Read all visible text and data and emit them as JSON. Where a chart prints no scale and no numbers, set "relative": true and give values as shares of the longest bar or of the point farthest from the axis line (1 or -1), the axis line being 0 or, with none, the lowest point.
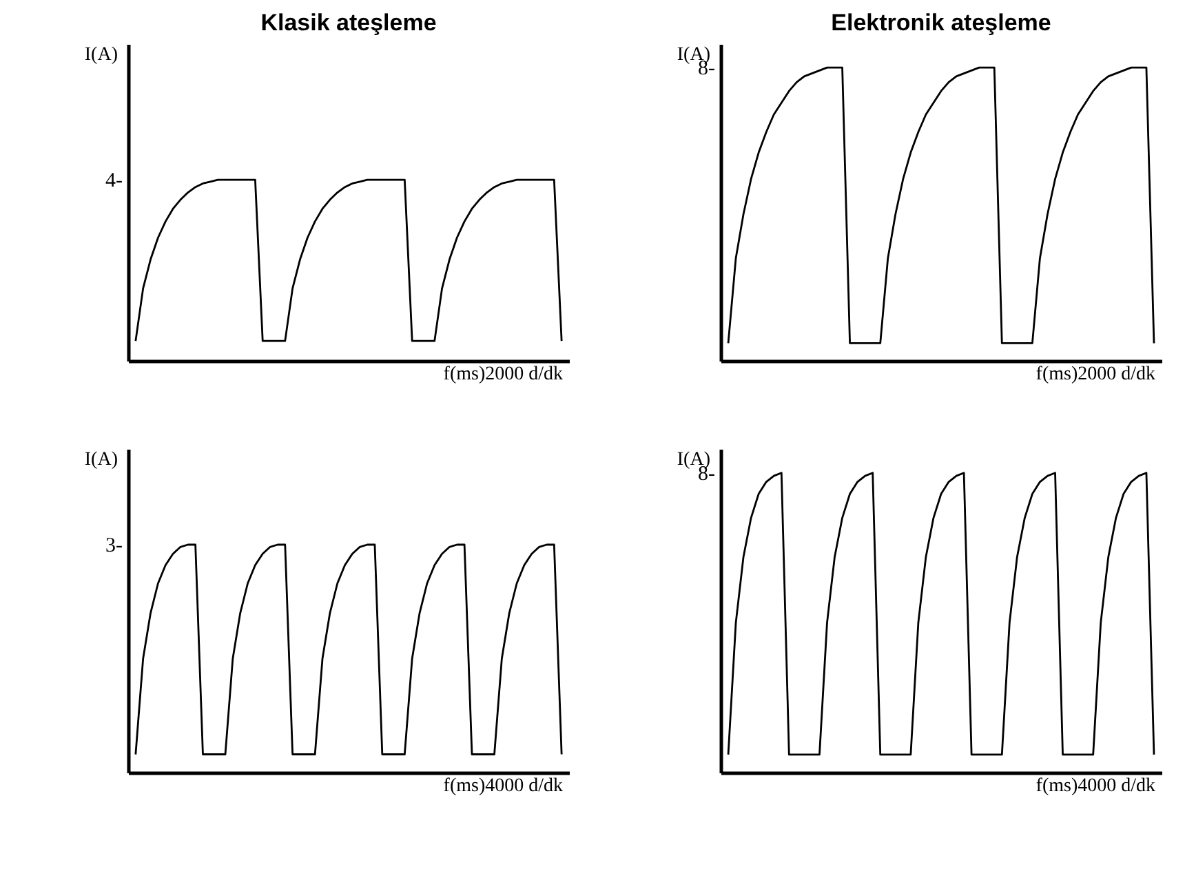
{
  "chart_data": [
    {
      "type": "line",
      "title": "Klasik ateşleme",
      "xlabel": "f(ms)2000 d/dk",
      "ylabel": "I(A)",
      "relative": true,
      "annotations": [
        "4-"
      ],
      "categories": [
        null,
        null,
        null,
        null,
        null,
        null,
        null,
        null,
        null,
        null,
        null,
        null,
        null,
        null,
        null,
        null,
        null,
        null,
        null,
        null,
        null,
        null,
        null,
        null,
        null,
        null,
        null,
        null,
        null,
        null,
        null,
        null,
        null,
        null,
        null,
        null,
        null,
        null,
        null,
        null,
        null,
        null,
        null,
        null,
        null,
        null,
        null,
        null,
        null,
        null,
        null,
        null,
        null,
        null,
        null,
        null,
        null,
        null
      ],
      "series": [
        {
          "color": "#000000",
          "values": [
            0.11,
            0.4,
            0.56,
            0.68,
            0.77,
            0.84,
            0.89,
            0.93,
            0.96,
            0.98,
            0.99,
            1,
            1,
            1,
            1,
            1,
            1,
            0.11,
            0.11,
            0.11,
            0.11,
            0.4,
            0.56,
            0.68,
            0.77,
            0.84,
            0.89,
            0.93,
            0.96,
            0.98,
            0.99,
            1,
            1,
            1,
            1,
            1,
            1,
            0.11,
            0.11,
            0.11,
            0.11,
            0.4,
            0.56,
            0.68,
            0.77,
            0.84,
            0.89,
            0.93,
            0.96,
            0.98,
            0.99,
            1,
            1,
            1,
            1,
            1,
            1,
            0.11
          ]
        }
      ]
    },
    {
      "type": "line",
      "title": "Elektronik ateşleme",
      "xlabel": "f(ms)2000 d/dk",
      "ylabel": "I(A)",
      "relative": true,
      "annotations": [
        "8-"
      ],
      "categories": [
        null,
        null,
        null,
        null,
        null,
        null,
        null,
        null,
        null,
        null,
        null,
        null,
        null,
        null,
        null,
        null,
        null,
        null,
        null,
        null,
        null,
        null,
        null,
        null,
        null,
        null,
        null,
        null,
        null,
        null,
        null,
        null,
        null,
        null,
        null,
        null,
        null,
        null,
        null,
        null,
        null,
        null,
        null,
        null,
        null,
        null,
        null,
        null,
        null,
        null,
        null,
        null,
        null,
        null,
        null,
        null,
        null
      ],
      "series": [
        {
          "color": "#000000",
          "values": [
            0.06,
            0.35,
            0.5,
            0.62,
            0.71,
            0.78,
            0.84,
            0.88,
            0.92,
            0.95,
            0.97,
            0.98,
            0.99,
            1,
            1,
            1,
            0.06,
            0.06,
            0.06,
            0.06,
            0.06,
            0.35,
            0.5,
            0.62,
            0.71,
            0.78,
            0.84,
            0.88,
            0.92,
            0.95,
            0.97,
            0.98,
            0.99,
            1,
            1,
            1,
            0.06,
            0.06,
            0.06,
            0.06,
            0.06,
            0.35,
            0.5,
            0.62,
            0.71,
            0.78,
            0.84,
            0.88,
            0.92,
            0.95,
            0.97,
            0.98,
            0.99,
            1,
            1,
            1,
            0.06
          ]
        }
      ]
    },
    {
      "type": "line",
      "xlabel": "f(ms)4000 d/dk",
      "ylabel": "I(A)",
      "relative": true,
      "annotations": [
        "3-"
      ],
      "categories": [
        null,
        null,
        null,
        null,
        null,
        null,
        null,
        null,
        null,
        null,
        null,
        null,
        null,
        null,
        null,
        null,
        null,
        null,
        null,
        null,
        null,
        null,
        null,
        null,
        null,
        null,
        null,
        null,
        null,
        null,
        null,
        null,
        null,
        null,
        null,
        null,
        null,
        null,
        null,
        null,
        null,
        null,
        null,
        null,
        null,
        null,
        null,
        null,
        null,
        null,
        null,
        null,
        null,
        null,
        null,
        null,
        null,
        null
      ],
      "series": [
        {
          "color": "#000000",
          "values": [
            0.08,
            0.5,
            0.7,
            0.83,
            0.91,
            0.96,
            0.99,
            1,
            1,
            0.08,
            0.08,
            0.08,
            0.08,
            0.5,
            0.7,
            0.83,
            0.91,
            0.96,
            0.99,
            1,
            1,
            0.08,
            0.08,
            0.08,
            0.08,
            0.5,
            0.7,
            0.83,
            0.91,
            0.96,
            0.99,
            1,
            1,
            0.08,
            0.08,
            0.08,
            0.08,
            0.5,
            0.7,
            0.83,
            0.91,
            0.96,
            0.99,
            1,
            1,
            0.08,
            0.08,
            0.08,
            0.08,
            0.5,
            0.7,
            0.83,
            0.91,
            0.96,
            0.99,
            1,
            1,
            0.08
          ]
        }
      ]
    },
    {
      "type": "line",
      "xlabel": "f(ms)4000 d/dk",
      "ylabel": "I(A)",
      "relative": true,
      "annotations": [
        "8-"
      ],
      "categories": [
        null,
        null,
        null,
        null,
        null,
        null,
        null,
        null,
        null,
        null,
        null,
        null,
        null,
        null,
        null,
        null,
        null,
        null,
        null,
        null,
        null,
        null,
        null,
        null,
        null,
        null,
        null,
        null,
        null,
        null,
        null,
        null,
        null,
        null,
        null,
        null,
        null,
        null,
        null,
        null,
        null,
        null,
        null,
        null,
        null,
        null,
        null,
        null,
        null,
        null,
        null,
        null,
        null,
        null,
        null,
        null,
        null
      ],
      "series": [
        {
          "color": "#000000",
          "values": [
            0.06,
            0.5,
            0.72,
            0.85,
            0.93,
            0.97,
            0.99,
            1,
            0.06,
            0.06,
            0.06,
            0.06,
            0.06,
            0.5,
            0.72,
            0.85,
            0.93,
            0.97,
            0.99,
            1,
            0.06,
            0.06,
            0.06,
            0.06,
            0.06,
            0.5,
            0.72,
            0.85,
            0.93,
            0.97,
            0.99,
            1,
            0.06,
            0.06,
            0.06,
            0.06,
            0.06,
            0.5,
            0.72,
            0.85,
            0.93,
            0.97,
            0.99,
            1,
            0.06,
            0.06,
            0.06,
            0.06,
            0.06,
            0.5,
            0.72,
            0.85,
            0.93,
            0.97,
            0.99,
            1,
            0.06
          ]
        }
      ]
    }
  ]
}
